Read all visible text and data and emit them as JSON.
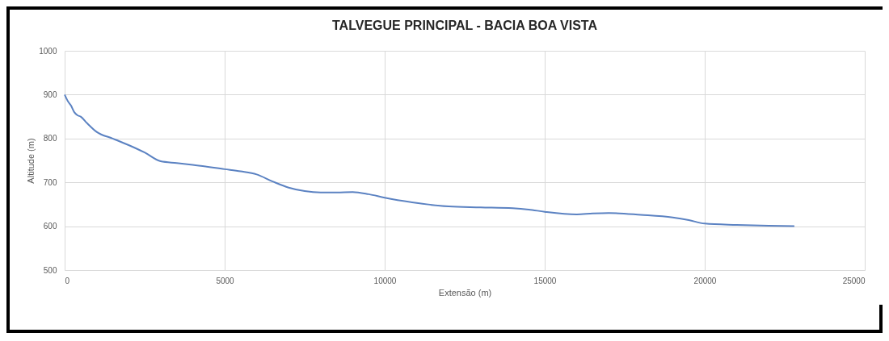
{
  "chart_data": {
    "type": "line",
    "title": "TALVEGUE PRINCIPAL - BACIA BOA VISTA",
    "xlabel": "Extensão (m)",
    "ylabel": "Altitude (m)",
    "x": [
      0,
      100,
      200,
      300,
      400,
      500,
      700,
      1000,
      1500,
      2000,
      2500,
      3000,
      3500,
      4000,
      5000,
      5500,
      6000,
      6500,
      7000,
      7500,
      8000,
      8500,
      9000,
      9500,
      10000,
      11000,
      12000,
      13000,
      14000,
      14500,
      15000,
      16000,
      16500,
      17000,
      18000,
      19000,
      19500,
      20000,
      21000,
      22000,
      22800
    ],
    "series": [
      {
        "color": "#5b82c2",
        "values": [
          900,
          885,
          875,
          860,
          853,
          850,
          835,
          815,
          800,
          785,
          768,
          748,
          744,
          740,
          730,
          725,
          718,
          702,
          688,
          680,
          677,
          677,
          678,
          673,
          665,
          653,
          645,
          643,
          641,
          638,
          633,
          627,
          629,
          630,
          626,
          620,
          614,
          606,
          603,
          601,
          600
        ]
      }
    ],
    "xlim": [
      0,
      25000
    ],
    "xticks": [
      0,
      5000,
      10000,
      15000,
      20000,
      25000
    ],
    "ylim": [
      500,
      1000
    ],
    "yticks": [
      500,
      600,
      700,
      800,
      900,
      1000
    ],
    "grid": true,
    "marker": "none",
    "line_style": "solid"
  }
}
